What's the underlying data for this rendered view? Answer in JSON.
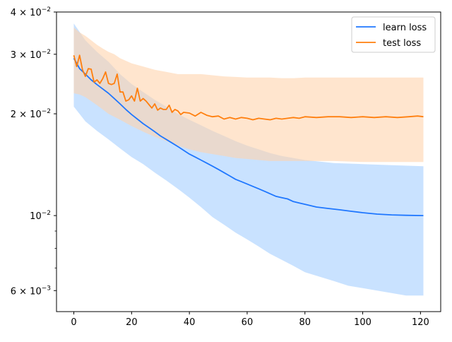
{
  "chart_data": {
    "type": "line",
    "title": "",
    "xlabel": "",
    "ylabel": "",
    "yscale": "log",
    "xlim": [
      -6,
      127
    ],
    "ylim": [
      0.0052,
      0.04
    ],
    "grid": false,
    "legend_position": "top-right",
    "x_ticks": [
      {
        "value": 0,
        "label": "0"
      },
      {
        "value": 20,
        "label": "20"
      },
      {
        "value": 40,
        "label": "40"
      },
      {
        "value": 60,
        "label": "60"
      },
      {
        "value": 80,
        "label": "80"
      },
      {
        "value": 100,
        "label": "100"
      },
      {
        "value": 120,
        "label": "120"
      }
    ],
    "y_ticks": [
      {
        "value": 0.04,
        "mantissa": "4",
        "base": "10",
        "exp": "−2"
      },
      {
        "value": 0.03,
        "mantissa": "3",
        "base": "10",
        "exp": "−2"
      },
      {
        "value": 0.02,
        "mantissa": "2",
        "base": "10",
        "exp": "−2"
      },
      {
        "value": 0.01,
        "mantissa": "",
        "base": "10",
        "exp": "−2"
      },
      {
        "value": 0.006,
        "mantissa": "6",
        "base": "10",
        "exp": "−3"
      }
    ],
    "y_minor_ticks": [
      0.007,
      0.008,
      0.009
    ],
    "series": [
      {
        "name": "learn loss",
        "color": "#1f77ff",
        "band_color": "#9ccaff",
        "mean": [
          [
            0,
            0.0292
          ],
          [
            2,
            0.0272
          ],
          [
            4,
            0.0262
          ],
          [
            6,
            0.0252
          ],
          [
            8,
            0.0244
          ],
          [
            10,
            0.0237
          ],
          [
            12,
            0.023
          ],
          [
            14,
            0.0222
          ],
          [
            16,
            0.0214
          ],
          [
            18,
            0.0206
          ],
          [
            20,
            0.0199
          ],
          [
            22,
            0.0193
          ],
          [
            24,
            0.0187
          ],
          [
            26,
            0.0182
          ],
          [
            28,
            0.0177
          ],
          [
            30,
            0.0172
          ],
          [
            32,
            0.0168
          ],
          [
            34,
            0.0164
          ],
          [
            36,
            0.016
          ],
          [
            38,
            0.0156
          ],
          [
            40,
            0.0152
          ],
          [
            42,
            0.0149
          ],
          [
            44,
            0.0146
          ],
          [
            46,
            0.0143
          ],
          [
            48,
            0.014
          ],
          [
            50,
            0.0137
          ],
          [
            52,
            0.0134
          ],
          [
            54,
            0.0131
          ],
          [
            56,
            0.0128
          ],
          [
            58,
            0.0126
          ],
          [
            60,
            0.0124
          ],
          [
            62,
            0.0122
          ],
          [
            64,
            0.012
          ],
          [
            66,
            0.0118
          ],
          [
            68,
            0.0116
          ],
          [
            70,
            0.0114
          ],
          [
            72,
            0.0113
          ],
          [
            74,
            0.0112
          ],
          [
            76,
            0.011
          ],
          [
            78,
            0.0109
          ],
          [
            80,
            0.0108
          ],
          [
            84,
            0.0106
          ],
          [
            88,
            0.0105
          ],
          [
            92,
            0.0104
          ],
          [
            96,
            0.0103
          ],
          [
            100,
            0.0102
          ],
          [
            105,
            0.0101
          ],
          [
            110,
            0.01005
          ],
          [
            115,
            0.01002
          ],
          [
            121,
            0.01
          ]
        ],
        "upper": [
          [
            0,
            0.037
          ],
          [
            4,
            0.033
          ],
          [
            8,
            0.0305
          ],
          [
            12,
            0.0285
          ],
          [
            16,
            0.0262
          ],
          [
            20,
            0.0245
          ],
          [
            24,
            0.0232
          ],
          [
            28,
            0.022
          ],
          [
            32,
            0.021
          ],
          [
            36,
            0.02
          ],
          [
            40,
            0.0192
          ],
          [
            44,
            0.0185
          ],
          [
            48,
            0.0178
          ],
          [
            52,
            0.0172
          ],
          [
            56,
            0.0166
          ],
          [
            60,
            0.0161
          ],
          [
            64,
            0.0157
          ],
          [
            68,
            0.0153
          ],
          [
            72,
            0.015
          ],
          [
            76,
            0.0148
          ],
          [
            80,
            0.0146
          ],
          [
            90,
            0.0143
          ],
          [
            100,
            0.0142
          ],
          [
            110,
            0.0141
          ],
          [
            121,
            0.014
          ]
        ],
        "lower": [
          [
            0,
            0.021
          ],
          [
            4,
            0.019
          ],
          [
            8,
            0.0178
          ],
          [
            12,
            0.0168
          ],
          [
            16,
            0.0158
          ],
          [
            20,
            0.0149
          ],
          [
            24,
            0.0142
          ],
          [
            28,
            0.0134
          ],
          [
            32,
            0.0127
          ],
          [
            36,
            0.012
          ],
          [
            40,
            0.0113
          ],
          [
            44,
            0.0106
          ],
          [
            48,
            0.0099
          ],
          [
            52,
            0.0094
          ],
          [
            56,
            0.0089
          ],
          [
            60,
            0.0085
          ],
          [
            64,
            0.0081
          ],
          [
            68,
            0.0077
          ],
          [
            72,
            0.0074
          ],
          [
            76,
            0.0071
          ],
          [
            80,
            0.0068
          ],
          [
            85,
            0.0066
          ],
          [
            90,
            0.0064
          ],
          [
            95,
            0.0062
          ],
          [
            100,
            0.0061
          ],
          [
            105,
            0.006
          ],
          [
            110,
            0.0059
          ],
          [
            115,
            0.0058
          ],
          [
            121,
            0.0058
          ]
        ]
      },
      {
        "name": "test loss",
        "color": "#ff7f0e",
        "band_color": "#ffd3ad",
        "mean": [
          [
            0,
            0.0298
          ],
          [
            1,
            0.0276
          ],
          [
            2,
            0.0298
          ],
          [
            3,
            0.027
          ],
          [
            4,
            0.0258
          ],
          [
            5,
            0.0272
          ],
          [
            6,
            0.0271
          ],
          [
            7,
            0.0248
          ],
          [
            8,
            0.0252
          ],
          [
            9,
            0.0246
          ],
          [
            10,
            0.0254
          ],
          [
            11,
            0.0266
          ],
          [
            12,
            0.0246
          ],
          [
            13,
            0.0244
          ],
          [
            14,
            0.0246
          ],
          [
            15,
            0.0262
          ],
          [
            16,
            0.0232
          ],
          [
            17,
            0.0232
          ],
          [
            18,
            0.0218
          ],
          [
            19,
            0.022
          ],
          [
            20,
            0.0226
          ],
          [
            21,
            0.0218
          ],
          [
            22,
            0.0238
          ],
          [
            23,
            0.0218
          ],
          [
            24,
            0.0222
          ],
          [
            25,
            0.0218
          ],
          [
            26,
            0.0213
          ],
          [
            27,
            0.0208
          ],
          [
            28,
            0.0214
          ],
          [
            29,
            0.0205
          ],
          [
            30,
            0.0208
          ],
          [
            31,
            0.0206
          ],
          [
            32,
            0.0206
          ],
          [
            33,
            0.0212
          ],
          [
            34,
            0.0202
          ],
          [
            35,
            0.0206
          ],
          [
            36,
            0.0204
          ],
          [
            37,
            0.0199
          ],
          [
            38,
            0.0202
          ],
          [
            40,
            0.0201
          ],
          [
            42,
            0.0197
          ],
          [
            44,
            0.0202
          ],
          [
            46,
            0.0198
          ],
          [
            48,
            0.0196
          ],
          [
            50,
            0.0197
          ],
          [
            52,
            0.0193
          ],
          [
            54,
            0.0195
          ],
          [
            56,
            0.0193
          ],
          [
            58,
            0.0195
          ],
          [
            60,
            0.0194
          ],
          [
            62,
            0.0192
          ],
          [
            64,
            0.0194
          ],
          [
            66,
            0.0193
          ],
          [
            68,
            0.0192
          ],
          [
            70,
            0.0194
          ],
          [
            72,
            0.0193
          ],
          [
            74,
            0.0194
          ],
          [
            76,
            0.0195
          ],
          [
            78,
            0.0194
          ],
          [
            80,
            0.0196
          ],
          [
            84,
            0.0195
          ],
          [
            88,
            0.0196
          ],
          [
            92,
            0.0196
          ],
          [
            96,
            0.0195
          ],
          [
            100,
            0.0196
          ],
          [
            104,
            0.0195
          ],
          [
            108,
            0.0196
          ],
          [
            112,
            0.0195
          ],
          [
            116,
            0.0196
          ],
          [
            119,
            0.0197
          ],
          [
            121,
            0.0196
          ]
        ],
        "upper": [
          [
            0,
            0.036
          ],
          [
            2,
            0.0348
          ],
          [
            4,
            0.034
          ],
          [
            6,
            0.033
          ],
          [
            8,
            0.032
          ],
          [
            10,
            0.0312
          ],
          [
            12,
            0.0305
          ],
          [
            14,
            0.03
          ],
          [
            16,
            0.0292
          ],
          [
            20,
            0.0282
          ],
          [
            24,
            0.0276
          ],
          [
            28,
            0.027
          ],
          [
            32,
            0.0266
          ],
          [
            36,
            0.0262
          ],
          [
            40,
            0.0262
          ],
          [
            44,
            0.0262
          ],
          [
            48,
            0.026
          ],
          [
            52,
            0.0258
          ],
          [
            56,
            0.0257
          ],
          [
            60,
            0.0256
          ],
          [
            64,
            0.0256
          ],
          [
            68,
            0.0256
          ],
          [
            72,
            0.0255
          ],
          [
            76,
            0.0255
          ],
          [
            80,
            0.0256
          ],
          [
            90,
            0.0256
          ],
          [
            100,
            0.0256
          ],
          [
            110,
            0.0256
          ],
          [
            121,
            0.0256
          ]
        ],
        "lower": [
          [
            0,
            0.023
          ],
          [
            2,
            0.0228
          ],
          [
            4,
            0.0224
          ],
          [
            6,
            0.0218
          ],
          [
            8,
            0.0212
          ],
          [
            10,
            0.0206
          ],
          [
            12,
            0.02
          ],
          [
            16,
            0.0192
          ],
          [
            20,
            0.0184
          ],
          [
            24,
            0.0177
          ],
          [
            28,
            0.0171
          ],
          [
            32,
            0.0166
          ],
          [
            36,
            0.0161
          ],
          [
            40,
            0.0157
          ],
          [
            44,
            0.0154
          ],
          [
            48,
            0.0152
          ],
          [
            52,
            0.015
          ],
          [
            56,
            0.0148
          ],
          [
            60,
            0.0147
          ],
          [
            64,
            0.0146
          ],
          [
            68,
            0.0145
          ],
          [
            72,
            0.0145
          ],
          [
            76,
            0.0145
          ],
          [
            80,
            0.0145
          ],
          [
            90,
            0.0145
          ],
          [
            100,
            0.0144
          ],
          [
            110,
            0.0144
          ],
          [
            121,
            0.0144
          ]
        ]
      }
    ]
  }
}
